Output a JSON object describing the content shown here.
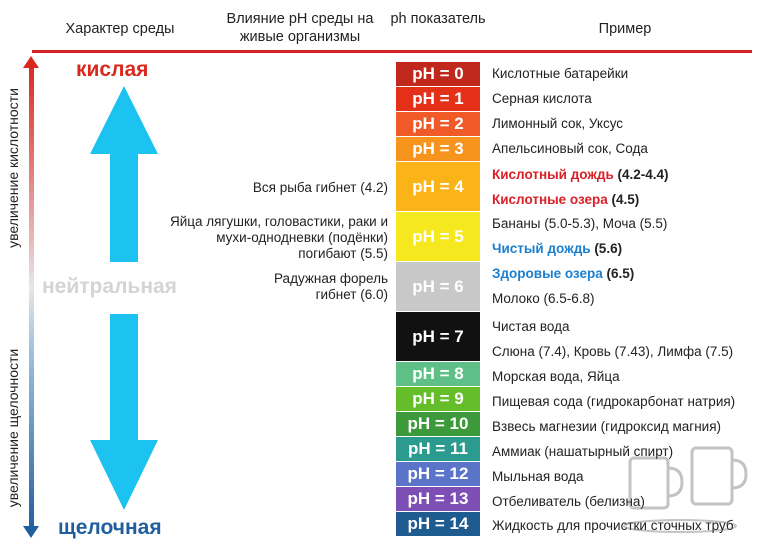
{
  "headers": {
    "character": "Характер среды",
    "influence": "Влияние pH среды на живые организмы",
    "ph": "ph показатель",
    "example": "Пример"
  },
  "axis_labels": {
    "acidity": "увеличение кислотности",
    "alkalinity": "увеличение щелочности"
  },
  "character_labels": {
    "acidic": "кислая",
    "neutral": "нейтральная",
    "alkaline": "щелочная"
  },
  "effects": [
    {
      "text": "Вся рыба гибнет (4.2)"
    },
    {
      "text": "Яйца лягушки, головастики, раки и мухи-однодневки (подёнки) погибают (5.5)"
    },
    {
      "text": "Радужная форель гибнет (6.0)"
    }
  ],
  "scale": [
    {
      "label": "pH = 0",
      "color": "#c0281d"
    },
    {
      "label": "pH = 1",
      "color": "#e53019"
    },
    {
      "label": "pH = 2",
      "color": "#f05a28"
    },
    {
      "label": "pH = 3",
      "color": "#f7941d"
    },
    {
      "label": "pH = 4",
      "color": "#fbb417"
    },
    {
      "label": "pH = 5",
      "color": "#f5e81e"
    },
    {
      "label": "pH = 6",
      "color": "#c8c8c8"
    },
    {
      "label": "pH = 7",
      "color": "#111111"
    },
    {
      "label": "pH = 8",
      "color": "#5fc087"
    },
    {
      "label": "pH = 9",
      "color": "#66bd2a"
    },
    {
      "label": "pH = 10",
      "color": "#3d9a3a"
    },
    {
      "label": "pH = 11",
      "color": "#2b9a8f"
    },
    {
      "label": "pH = 12",
      "color": "#5a74c9"
    },
    {
      "label": "pH = 13",
      "color": "#7d4fb4"
    },
    {
      "label": "pH = 14",
      "color": "#1e5b8f"
    }
  ],
  "examples": [
    {
      "pre": "Кислотные батарейки"
    },
    {
      "pre": "Серная кислота"
    },
    {
      "pre": "Лимонный сок, Уксус"
    },
    {
      "pre": "Апельсиновый сок, Сода"
    },
    {
      "emph": "Кислотный дождь",
      "post": " (4.2-4.4)",
      "color": "#d92027"
    },
    {
      "emph": "Кислотные озера",
      "post": " (4.5)",
      "color": "#d92027"
    },
    {
      "pre": "Бананы (5.0-5.3), Моча (5.5)"
    },
    {
      "emph": "Чистый дождь",
      "post": " (5.6)",
      "color": "#1b7fd0"
    },
    {
      "emph": "Здоровые озера",
      "post": " (6.5)",
      "color": "#1b7fd0"
    },
    {
      "pre": "Молоко (6.5-6.8)"
    },
    {
      "pre": "Чистая вода"
    },
    {
      "pre": "Слюна (7.4), Кровь (7.43), Лимфа (7.5)"
    },
    {
      "pre": "Морская вода, Яйца"
    },
    {
      "pre": "Пищевая сода (гидрокарбонат натрия)"
    },
    {
      "pre": "Взвесь магнезии (гидроксид магния)"
    },
    {
      "pre": "Аммиак (нашатырный спирт)"
    },
    {
      "pre": "Мыльная вода"
    },
    {
      "pre": "Отбеливатель (белизна)"
    },
    {
      "pre": "Жидкость для прочистки сточных труб"
    }
  ],
  "colors": {
    "acidic": "#d9281e",
    "neutral": "#d4d4d4",
    "alkaline": "#1f5fa0",
    "arrow": "#1cc3f0",
    "rule": "#d92027"
  }
}
